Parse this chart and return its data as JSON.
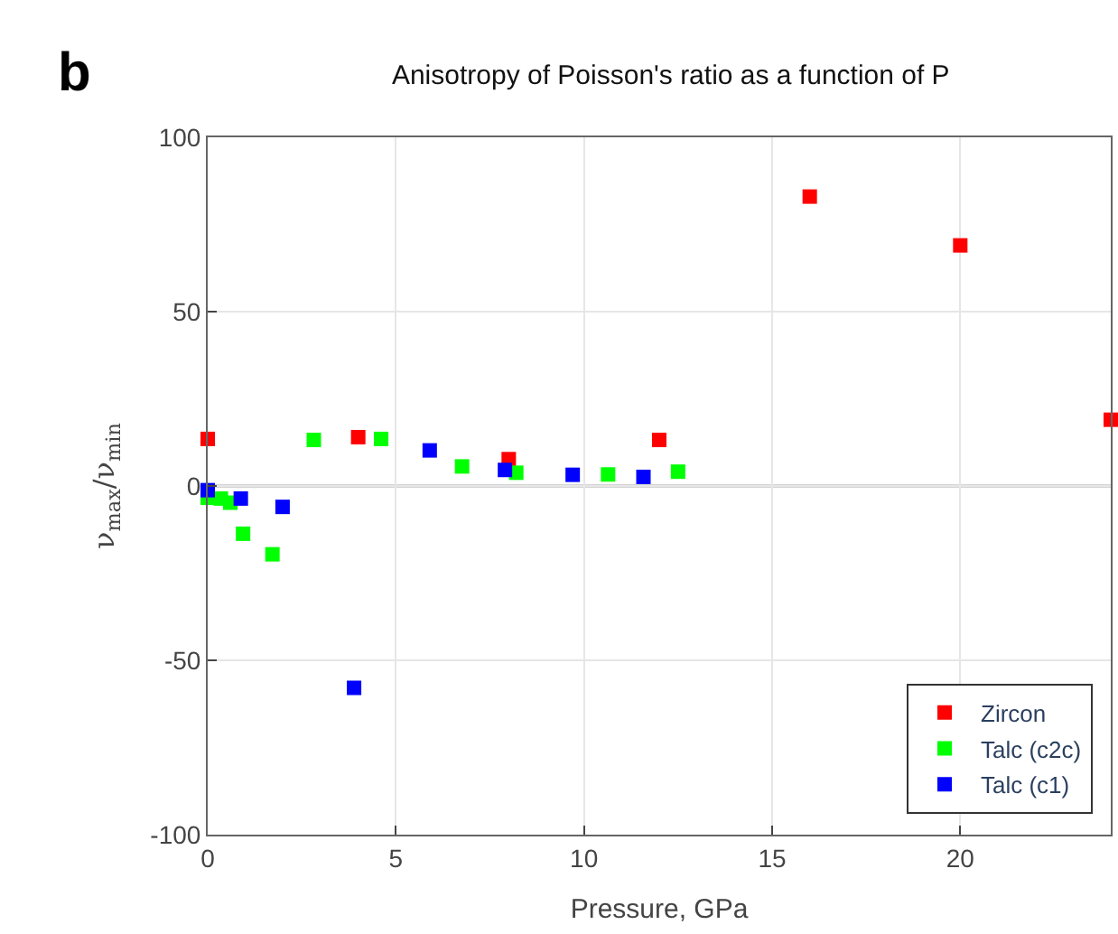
{
  "chart_data": {
    "type": "scatter",
    "title": "Anisotropy of Poisson's ratio as a function of P",
    "xlabel": "Pressure, GPa",
    "ylabel": "ν$_{max}$/ν$_{min}$",
    "annotations": [
      "b"
    ],
    "series": [
      {
        "name": "Zircon",
        "color": "#ff0000",
        "x": [
          0,
          4,
          8,
          12,
          16,
          20,
          24
        ],
        "values": [
          13.5,
          14,
          7.7,
          13.2,
          83,
          69,
          19
        ]
      },
      {
        "name": "Talc (c2c)",
        "color": "#00ff00",
        "x": [
          0,
          0.35,
          0.6,
          0.94,
          1.72,
          2.82,
          4.61,
          6.76,
          8.2,
          10.64,
          12.5
        ],
        "values": [
          -3.4,
          -3.6,
          -4.8,
          -13.7,
          -19.6,
          13.2,
          13.5,
          5.6,
          3.8,
          3.3,
          4.1
        ]
      },
      {
        "name": "Talc (c1)",
        "color": "#0000ff",
        "x": [
          0,
          0.88,
          1.99,
          3.89,
          5.9,
          7.9,
          9.7,
          11.58
        ],
        "values": [
          -1.2,
          -3.6,
          -6,
          -57.9,
          10.2,
          4.6,
          3.2,
          2.6
        ]
      }
    ],
    "xlim": [
      0,
      24
    ],
    "xticks": [
      0,
      5,
      10,
      15,
      20
    ],
    "ylim": [
      -100,
      100
    ],
    "yticks": [
      -100,
      -50,
      0,
      50,
      100
    ],
    "ref_lines": [
      {
        "axis": "y",
        "value": 0,
        "color": "#555555"
      }
    ],
    "grid": true,
    "legend": "bottom right",
    "marker": "square"
  }
}
